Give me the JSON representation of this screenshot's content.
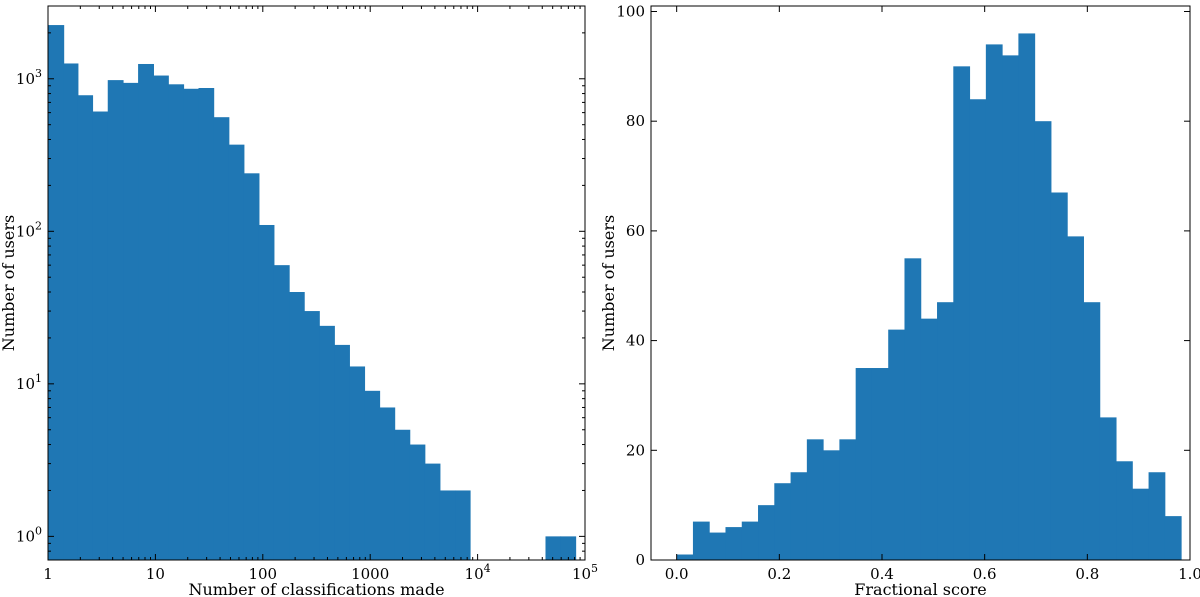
{
  "chart_data": [
    {
      "type": "bar",
      "subtype": "histogram",
      "x_scale": "log",
      "y_scale": "log",
      "xlabel": "Number of classifications made",
      "ylabel": "Number of users",
      "xlim": [
        1,
        100000
      ],
      "ylim": [
        0.7,
        3000
      ],
      "x_ticks": [
        {
          "value": 1,
          "label": "1"
        },
        {
          "value": 10,
          "label": "10"
        },
        {
          "value": 100,
          "label": "100"
        },
        {
          "value": 1000,
          "label": "1000"
        },
        {
          "value": 10000,
          "label": "10",
          "exp": "4"
        },
        {
          "value": 100000,
          "label": "10",
          "exp": "5"
        }
      ],
      "y_ticks": [
        {
          "value": 1,
          "label": "10",
          "exp": "0"
        },
        {
          "value": 10,
          "label": "10",
          "exp": "1"
        },
        {
          "value": 100,
          "label": "10",
          "exp": "2"
        },
        {
          "value": 1000,
          "label": "10",
          "exp": "3"
        }
      ],
      "bin_edges": [
        1,
        1.4,
        1.9,
        2.6,
        3.6,
        5.0,
        6.9,
        9.6,
        13.2,
        18.3,
        25.2,
        34.9,
        48.3,
        66.7,
        92.1,
        127,
        176,
        243,
        336,
        464,
        641,
        886,
        1224,
        1691,
        2336,
        3228,
        4460,
        6162,
        8514,
        11764,
        16254,
        22457,
        31027,
        42868,
        59228,
        81832,
        113062
      ],
      "counts": [
        2250,
        1260,
        780,
        610,
        980,
        940,
        1250,
        1050,
        920,
        860,
        870,
        560,
        370,
        240,
        110,
        60,
        40,
        30,
        24,
        18,
        13,
        9,
        7,
        5,
        4,
        3,
        2,
        2,
        0,
        0,
        0,
        0,
        0,
        1,
        1,
        0
      ]
    },
    {
      "type": "bar",
      "subtype": "histogram",
      "xlabel": "Fractional score",
      "ylabel": "Number of users",
      "xlim": [
        -0.05,
        1.0
      ],
      "ylim": [
        0,
        101
      ],
      "x_ticks": [
        {
          "value": 0.0,
          "label": "0.0"
        },
        {
          "value": 0.2,
          "label": "0.2"
        },
        {
          "value": 0.4,
          "label": "0.4"
        },
        {
          "value": 0.6,
          "label": "0.6"
        },
        {
          "value": 0.8,
          "label": "0.8"
        },
        {
          "value": 1.0,
          "label": "1.0"
        }
      ],
      "y_ticks": [
        {
          "value": 0,
          "label": "0"
        },
        {
          "value": 20,
          "label": "20"
        },
        {
          "value": 40,
          "label": "40"
        },
        {
          "value": 60,
          "label": "60"
        },
        {
          "value": 80,
          "label": "80"
        },
        {
          "value": 100,
          "label": "100"
        }
      ],
      "bin_start": 0.0,
      "bin_width": 0.0317,
      "counts": [
        1,
        7,
        5,
        6,
        7,
        10,
        14,
        16,
        22,
        20,
        22,
        35,
        35,
        42,
        55,
        44,
        47,
        90,
        84,
        94,
        92,
        96,
        80,
        67,
        59,
        47,
        26,
        18,
        13,
        16,
        8
      ]
    }
  ]
}
